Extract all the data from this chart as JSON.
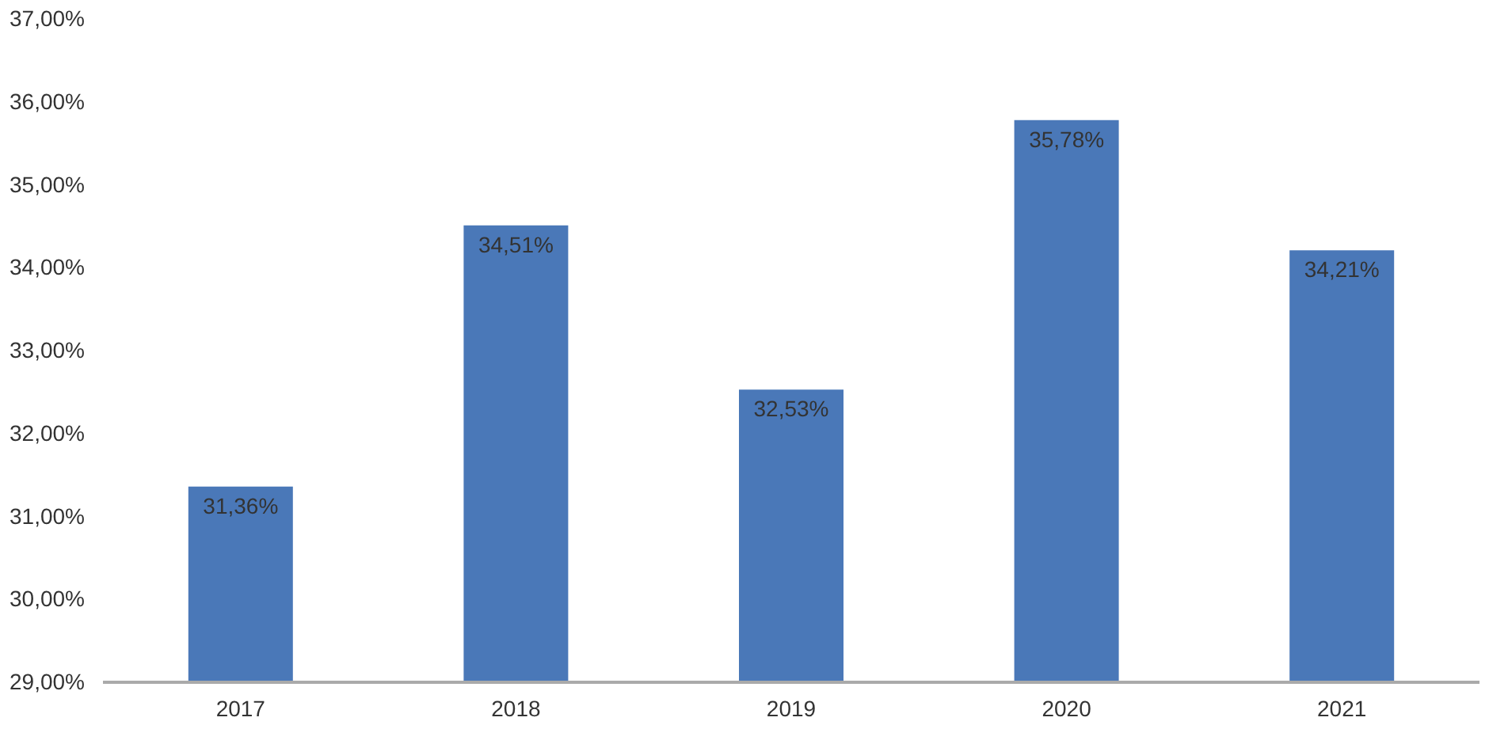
{
  "chart_data": {
    "type": "bar",
    "categories": [
      "2017",
      "2018",
      "2019",
      "2020",
      "2021"
    ],
    "values": [
      31.36,
      34.51,
      32.53,
      35.78,
      34.21
    ],
    "value_labels": [
      "31,36%",
      "34,51%",
      "32,53%",
      "35,78%",
      "34,21%"
    ],
    "color": "#4a78b8",
    "ylim": [
      29,
      37
    ],
    "yticks": [
      {
        "value": 29,
        "label": "29,00%"
      },
      {
        "value": 30,
        "label": "30,00%"
      },
      {
        "value": 31,
        "label": "31,00%"
      },
      {
        "value": 32,
        "label": "32,00%"
      },
      {
        "value": 33,
        "label": "33,00%"
      },
      {
        "value": 34,
        "label": "34,00%"
      },
      {
        "value": 35,
        "label": "35,00%"
      },
      {
        "value": 36,
        "label": "36,00%"
      },
      {
        "value": 37,
        "label": "37,00%"
      }
    ],
    "grid": false
  }
}
